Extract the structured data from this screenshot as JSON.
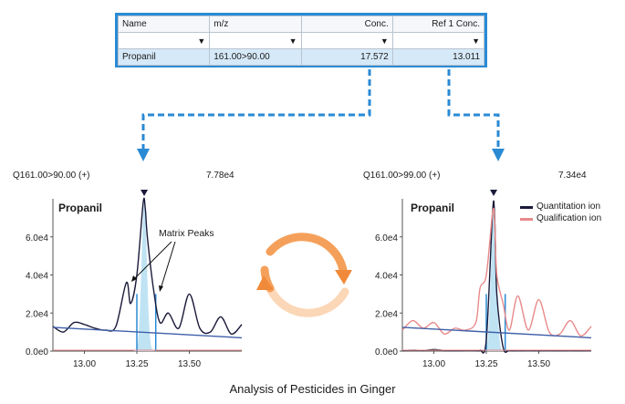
{
  "table": {
    "headers": [
      "Name",
      "m/z",
      "Conc.",
      "Ref 1 Conc."
    ],
    "row": [
      "Propanil",
      "161.00>90.00",
      "17.572",
      "13.011"
    ]
  },
  "left_chart": {
    "transition": "Q161.00>90.00 (+)",
    "intensity": "7.78e4",
    "compound": "Propanil",
    "annotation": "Matrix Peaks"
  },
  "right_chart": {
    "transition": "Q161.00>99.00 (+)",
    "intensity": "7.34e4",
    "compound": "Propanil",
    "legend": [
      {
        "label": "Quantitation ion",
        "color": "#1a1a3a"
      },
      {
        "label": "Qualification ion",
        "color": "#e88a8a"
      }
    ]
  },
  "caption": "Analysis of Pesticides in Ginger",
  "colors": {
    "accent": "#2a8ad4",
    "baseline": "#3f5fa8",
    "peak_fill": "#bfe3f3",
    "cycle_orange": "#f08a3a"
  },
  "chart_data": [
    {
      "type": "line",
      "x": [
        12.85,
        12.9,
        12.95,
        13.0,
        13.05,
        13.1,
        13.15,
        13.2,
        13.22,
        13.25,
        13.28,
        13.29,
        13.3,
        13.33,
        13.36,
        13.4,
        13.45,
        13.5,
        13.55,
        13.6,
        13.65,
        13.7,
        13.75
      ],
      "series": [
        {
          "name": "",
          "values": [
            13000.0,
            10000.0,
            15000.0,
            14000.0,
            12000.0,
            11000.0,
            13000.0,
            36000.0,
            25000.0,
            40000.0,
            77800.0,
            75000.0,
            60000.0,
            32000.0,
            15000.0,
            20000.0,
            12000.0,
            30000.0,
            12000.0,
            10000.0,
            18000.0,
            9000.0,
            14000.0
          ]
        }
      ],
      "yticks": [
        "0.0e0",
        "2.0e4",
        "4.0e4",
        "6.0e4"
      ],
      "xticks": [
        "13.00",
        "13.25",
        "13.50"
      ],
      "ylim": [
        0,
        80000.0
      ]
    },
    {
      "type": "line",
      "x": [
        12.85,
        12.9,
        12.95,
        13.0,
        13.05,
        13.1,
        13.15,
        13.2,
        13.22,
        13.25,
        13.28,
        13.29,
        13.3,
        13.33,
        13.36,
        13.4,
        13.45,
        13.5,
        13.55,
        13.6,
        13.65,
        13.7,
        13.75
      ],
      "series": [
        {
          "name": "Quantitation ion",
          "values": [
            200,
            500,
            300,
            800,
            300,
            200,
            300,
            300,
            500,
            6000,
            73400.0,
            70000.0,
            30000.0,
            2000,
            300,
            200,
            300,
            200,
            300,
            200,
            300,
            200,
            300
          ]
        },
        {
          "name": "Qualification ion",
          "values": [
            11000.0,
            16000.0,
            12000.0,
            15000.0,
            9000.0,
            12000.0,
            11000.0,
            15000.0,
            33000.0,
            40000.0,
            73000.0,
            68000.0,
            40000.0,
            25000.0,
            11000.0,
            29000.0,
            11000.0,
            27000.0,
            10000.0,
            9000.0,
            16000.0,
            8000.0,
            13000.0
          ]
        }
      ],
      "yticks": [
        "0.0e0",
        "2.0e4",
        "4.0e4",
        "6.0e4"
      ],
      "xticks": [
        "13.00",
        "13.25",
        "13.50"
      ],
      "ylim": [
        0,
        80000.0
      ]
    }
  ]
}
